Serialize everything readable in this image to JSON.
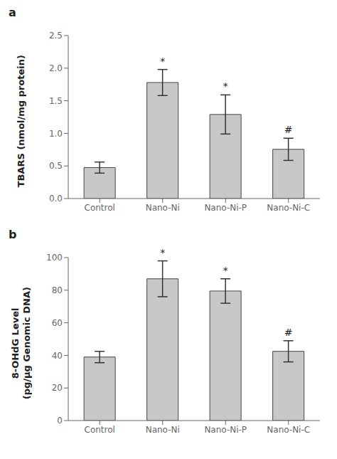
{
  "chart_data": [
    {
      "type": "bar",
      "title": "a",
      "categories": [
        "Control",
        "Nano-Ni",
        "Nano-Ni-P",
        "Nano-Ni-C"
      ],
      "values": [
        0.475,
        1.78,
        1.29,
        0.755
      ],
      "errors": [
        0.085,
        0.2,
        0.3,
        0.17
      ],
      "ylabel": "TBARS (nmol/mg protein)",
      "ylim": [
        0,
        2.5
      ],
      "yticks": [
        {
          "value": 0,
          "label": "0.0"
        },
        {
          "value": 0.5,
          "label": "0.5"
        },
        {
          "value": 1.0,
          "label": "1.0"
        },
        {
          "value": 1.5,
          "label": "1.5"
        },
        {
          "value": 2.0,
          "label": "2.0"
        },
        {
          "value": 2.5,
          "label": "2.5"
        }
      ],
      "annotations": [
        {
          "category": "Nano-Ni",
          "text": "*"
        },
        {
          "category": "Nano-Ni-P",
          "text": "*"
        },
        {
          "category": "Nano-Ni-C",
          "text": "#"
        }
      ],
      "color": "#c8c8c8",
      "grid": false
    },
    {
      "type": "bar",
      "title": "b",
      "categories": [
        "Control",
        "Nano-Ni",
        "Nano-Ni-P",
        "Nano-Ni-C"
      ],
      "values": [
        39.0,
        87.0,
        79.5,
        42.5
      ],
      "errors": [
        3.5,
        11.0,
        7.5,
        6.5
      ],
      "ylabel": "8-OHdG Level\n(pg/μg Genomic DNA)",
      "ylim": [
        0,
        100
      ],
      "yticks": [
        0,
        20,
        40,
        60,
        80,
        100
      ],
      "annotations": [
        {
          "category": "Nano-Ni",
          "text": "*"
        },
        {
          "category": "Nano-Ni-P",
          "text": "*"
        },
        {
          "category": "Nano-Ni-C",
          "text": "#"
        }
      ],
      "color": "#c8c8c8",
      "grid": false
    }
  ]
}
